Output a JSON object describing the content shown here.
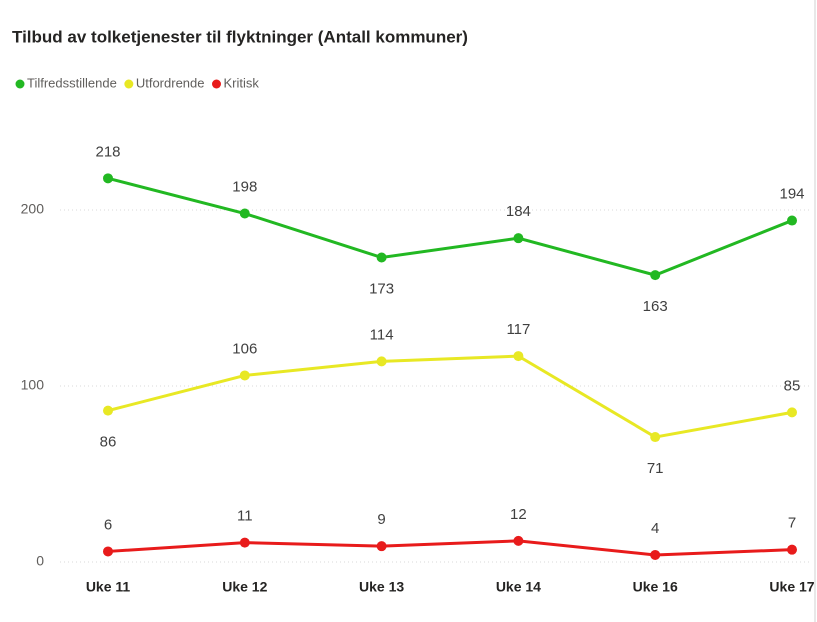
{
  "chart_data": {
    "type": "line",
    "title": "Tilbud av tolketjenester til flyktninger (Antall kommuner)",
    "categories": [
      "Uke 11",
      "Uke 12",
      "Uke 13",
      "Uke 14",
      "Uke 16",
      "Uke 17"
    ],
    "series": [
      {
        "name": "Tilfredsstillende",
        "color": "#22b822",
        "values": [
          218,
          198,
          173,
          184,
          163,
          194
        ]
      },
      {
        "name": "Utfordrende",
        "color": "#e8e824",
        "values": [
          86,
          106,
          114,
          117,
          71,
          85
        ]
      },
      {
        "name": "Kritisk",
        "color": "#e81b1b",
        "values": [
          6,
          11,
          9,
          12,
          4,
          7
        ]
      }
    ],
    "ylim": [
      0,
      240
    ],
    "yticks": [
      0,
      100,
      200
    ],
    "grid": true,
    "legend": "top-left"
  }
}
